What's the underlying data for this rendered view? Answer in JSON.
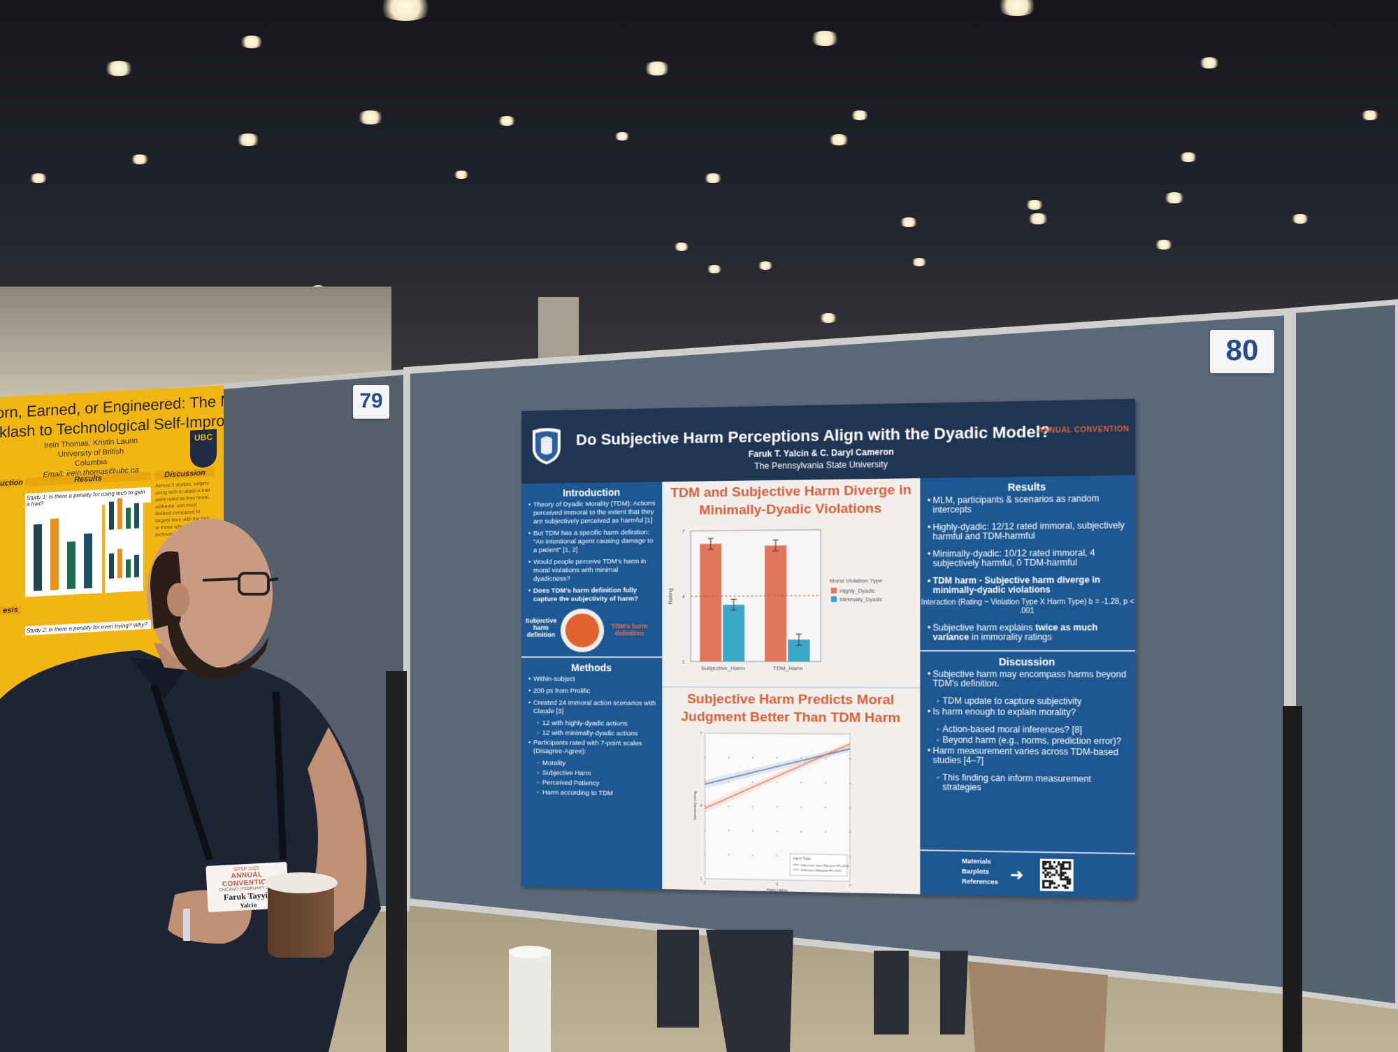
{
  "scene": {
    "board_numbers": {
      "left": "79",
      "right": "80"
    }
  },
  "left_poster": {
    "title_line1": "orn, Earned, or Engineered: The Moral",
    "title_line2": "cklash to Technological Self-Improvement",
    "authors": "Irein Thomas, Kristin Laurin",
    "affiliation": "University of British Columbia",
    "email": "Email: irein.thomas@ubc.ca",
    "logo": "UBC",
    "sections": {
      "intro": "uction",
      "results": "Results",
      "discussion": "Discussion",
      "hypothesis": "esis"
    },
    "study1": "Study 1: Is there a penalty for using tech to gain a trait?",
    "study2": "Study 2: Is there a penalty for even trying? Why?",
    "discussion_text": "Across 3 studies, targets using tech to attain a trait were rated as less moral, authentic and most disliked compared to targets born with the trait or those who used non-technological..."
  },
  "poster": {
    "title": "Do Subjective Harm Perceptions Align with the Dyadic Model?",
    "authors": "Faruk T. Yalcin & C. Daryl Cameron",
    "affiliation": "The Pennsylvania State University",
    "convention_logo": "ANNUAL CONVENTION",
    "introduction": {
      "heading": "Introduction",
      "bullets": [
        "Theory of Dyadic Morality (TDM): Actions perceived immoral to the extent that they are subjectively perceived as harmful [1]",
        "But TDM has a specific harm definition: \"An intentional agent causing damage to a patient\" [1, 2]",
        "Would people perceive TDM's harm in moral violations with minimal dyadicness?",
        "Does TDM's harm definition fully capture the subjectivity of harm?"
      ],
      "diagram_outer": "Subjective harm definition",
      "diagram_inner": "TDM's harm definition"
    },
    "methods": {
      "heading": "Methods",
      "bullets": [
        {
          "text": "Within-subject",
          "level": 0
        },
        {
          "text": "200 ps from Prolific",
          "level": 0
        },
        {
          "text": "Created 24 immoral action scenarios with Claude [3]",
          "level": 0
        },
        {
          "text": "12 with highly-dyadic actions",
          "level": 1
        },
        {
          "text": "12 with minimally-dyadic actions",
          "level": 1
        },
        {
          "text": "Participants rated with 7-point scales (Disagree-Agree):",
          "level": 0
        },
        {
          "text": "Morality",
          "level": 1
        },
        {
          "text": "Subjective Harm",
          "level": 1
        },
        {
          "text": "Perceived Patiency",
          "level": 1
        },
        {
          "text": "Harm according to TDM",
          "level": 1
        }
      ]
    },
    "middle": {
      "heading1": "TDM and Subjective Harm Diverge in Minimally-Dyadic Violations",
      "heading2": "Subjective Harm Predicts Moral Judgment Better Than TDM Harm"
    },
    "results": {
      "heading": "Results",
      "bullets": [
        {
          "text": "MLM, participants & scenarios as random intercepts",
          "bold": false
        },
        {
          "text": "Highly-dyadic: 12/12 rated immoral, subjectively harmful and TDM-harmful",
          "bold": false
        },
        {
          "text": "Minimally-dyadic: 10/12 rated immoral, 4 subjectively harmful, 0 TDM-harmful",
          "bold": false
        },
        {
          "text": "TDM harm - Subjective harm diverge in minimally-dyadic violations",
          "bold": true
        }
      ],
      "stat": "Interaction (Rating ~ Violation Type X Harm Type) b = -1.28, p < .001",
      "last_bullet_a": "Subjective harm explains ",
      "last_bullet_b": "twice as much variance",
      "last_bullet_c": " in immorality ratings"
    },
    "discussion": {
      "heading": "Discussion",
      "bullets": [
        {
          "text": "Subjective harm may encompass harms beyond TDM's definition.",
          "level": 0
        },
        {
          "text": "TDM update to capture subjectivity",
          "level": 1
        },
        {
          "text": "Is harm enough to explain morality?",
          "level": 0
        },
        {
          "text": "Action-based moral inferences? [8]",
          "level": 1
        },
        {
          "text": "Beyond harm (e.g., norms, prediction error)?",
          "level": 1
        },
        {
          "text": "Harm measurement varies across TDM-based studies [4–7]",
          "level": 0
        },
        {
          "text": "This finding can inform measurement strategies",
          "level": 1
        }
      ]
    },
    "links": [
      "Materials",
      "Barplots",
      "References"
    ],
    "charts": [
      {
        "type": "bar",
        "categories": [
          "Subjective_Harm",
          "TDM_Harm"
        ],
        "series": [
          {
            "name": "Highly_Dyadic",
            "values": [
              6.4,
              6.3
            ],
            "errors": [
              0.25,
              0.25
            ],
            "color": "#e2765a"
          },
          {
            "name": "Minimally_Dyadic",
            "values": [
              3.6,
              2.0
            ],
            "errors": [
              0.25,
              0.25
            ],
            "color": "#3aa7c9"
          }
        ],
        "xlabel": "",
        "ylabel": "Rating",
        "ylim": [
          1,
          7
        ],
        "yticks": [
          1,
          4,
          7
        ],
        "reference_line": 4,
        "legend_title": "Moral Violation Type",
        "legend": "right"
      },
      {
        "type": "line",
        "xlabel": "Harm rating",
        "ylabel": "Immorality rating",
        "xlim": [
          1,
          7
        ],
        "ylim": [
          1,
          7
        ],
        "xticks": [
          1,
          4,
          7
        ],
        "yticks": [
          1,
          4,
          7
        ],
        "series": [
          {
            "name": "Subjective harm (Marginal R²=.424)",
            "x": [
              1,
              7
            ],
            "y": [
              4.9,
              6.4
            ],
            "color": "#4f7fae"
          },
          {
            "name": "TDM harm (Marginal R²=.209)",
            "x": [
              1,
              7
            ],
            "y": [
              3.9,
              6.6
            ],
            "color": "#e2765a"
          }
        ],
        "legend_title": "Harm Type",
        "legend": "bottom-right"
      }
    ]
  },
  "badge": {
    "small": "SPSP 2025",
    "event": "ANNUAL CONVENTION",
    "dates": "CHICAGO | FEBRUARY 20-22",
    "name_line1": "Faruk Tayyip",
    "name_line2": "Yalcin"
  },
  "colors": {
    "poster_blue": "#1e5893",
    "poster_navy": "#1f3554",
    "accent_orange": "#d35f3c",
    "board": "#5b6878",
    "left_poster_yellow": "#f2b614"
  }
}
